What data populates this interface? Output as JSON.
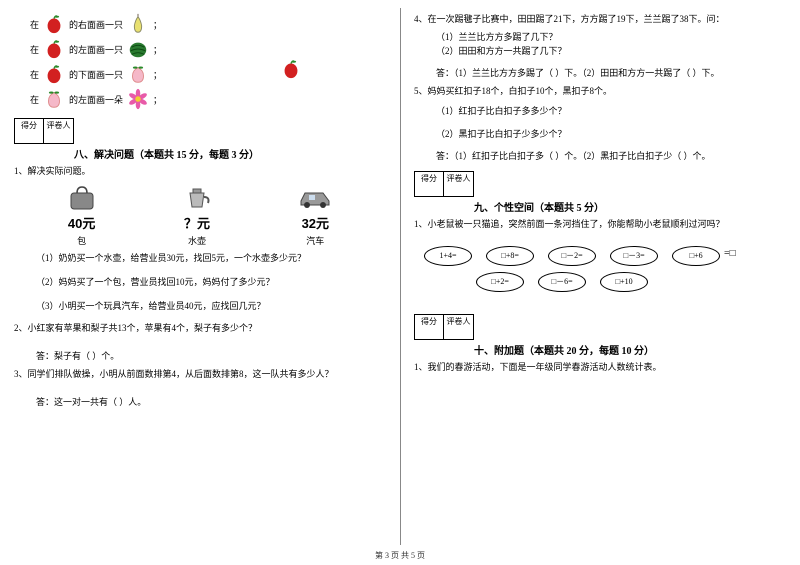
{
  "left": {
    "pos_rows": [
      {
        "prefix": "在",
        "obj": "apple",
        "text": "的右面画一只",
        "draw": "pear"
      },
      {
        "prefix": "在",
        "obj": "apple",
        "text": "的左面画一只",
        "draw": "watermelon"
      },
      {
        "prefix": "在",
        "obj": "apple",
        "text": "的下面画一只",
        "draw": "peach"
      },
      {
        "prefix": "在",
        "obj": "peach",
        "text": "的左面画一朵",
        "draw": "flower"
      }
    ],
    "score_labels": [
      "得分",
      "评卷人"
    ],
    "section8_title": "八、解决问题（本题共 15 分，每题 3 分）",
    "q1": "1、解决实际问题。",
    "items": [
      {
        "price": "40元",
        "name": "包"
      },
      {
        "price": "？元",
        "name": "水壶"
      },
      {
        "price": "32元",
        "name": "汽车"
      }
    ],
    "q1_subs": [
      "（1）奶奶买一个水壶，给营业员30元，找回5元，一个水壶多少元？",
      "（2）妈妈买了一个包，营业员找回10元，妈妈付了多少元？",
      "（3）小明买一个玩具汽车，给营业员40元，应找回几元？"
    ],
    "q2": "2、小红家有苹果和梨子共13个，苹果有4个，梨子有多少个？",
    "q2_ans": "答：梨子有（   ）个。",
    "q3": "3、同学们排队做操，小明从前面数排第4，从后面数排第8，这一队共有多少人？",
    "q3_ans": "答：这一对一共有（   ）人。"
  },
  "right": {
    "q4": "4、在一次踢毽子比赛中，田田踢了21下，方方踢了19下，兰兰踢了38下。问：",
    "q4_subs": [
      "（1）兰兰比方方多踢了几下？",
      "（2）田田和方方一共踢了几下？"
    ],
    "q4_ans": "答：（1）兰兰比方方多踢了（   ）下。（2）田田和方方一共踢了（   ）下。",
    "q5": "5、妈妈买红扣子18个，白扣子10个，黑扣子8个。",
    "q5_subs": [
      "（1）红扣子比白扣子多多少个？",
      "（2）黑扣子比白扣子少多少个？"
    ],
    "q5_ans": "答：（1）红扣子比白扣子多（   ）个。（2）黑扣子比白扣子少（   ）个。",
    "score_labels": [
      "得分",
      "评卷人"
    ],
    "section9_title": "九、个性空间（本题共 5 分）",
    "q9_1": "1、小老鼠被一只猫追，突然前面一条河挡住了，你能帮助小老鼠顺利过河吗？",
    "bubbles_top": [
      "1+4=",
      "□+8=",
      "□－2=",
      "□－3=",
      "□+6"
    ],
    "bubbles_bot": [
      "□+2=",
      "□－6=",
      "□+10"
    ],
    "eq_end": "=□",
    "section10_title": "十、附加题（本题共 20 分，每题 10 分）",
    "q10_1": "1、我们的春游活动，下面是一年级同学春游活动人数统计表。"
  },
  "footer": "第 3 页  共 5 页",
  "colors": {
    "apple_red": "#d22020",
    "leaf_green": "#2a8a2a",
    "pear_yellow": "#e8e070",
    "melon_green": "#2a7a30",
    "melon_stripe": "#0c4a12",
    "peach_pink": "#f5b8c8",
    "flower_pink": "#e85aa8",
    "flower_center": "#f2d030"
  }
}
